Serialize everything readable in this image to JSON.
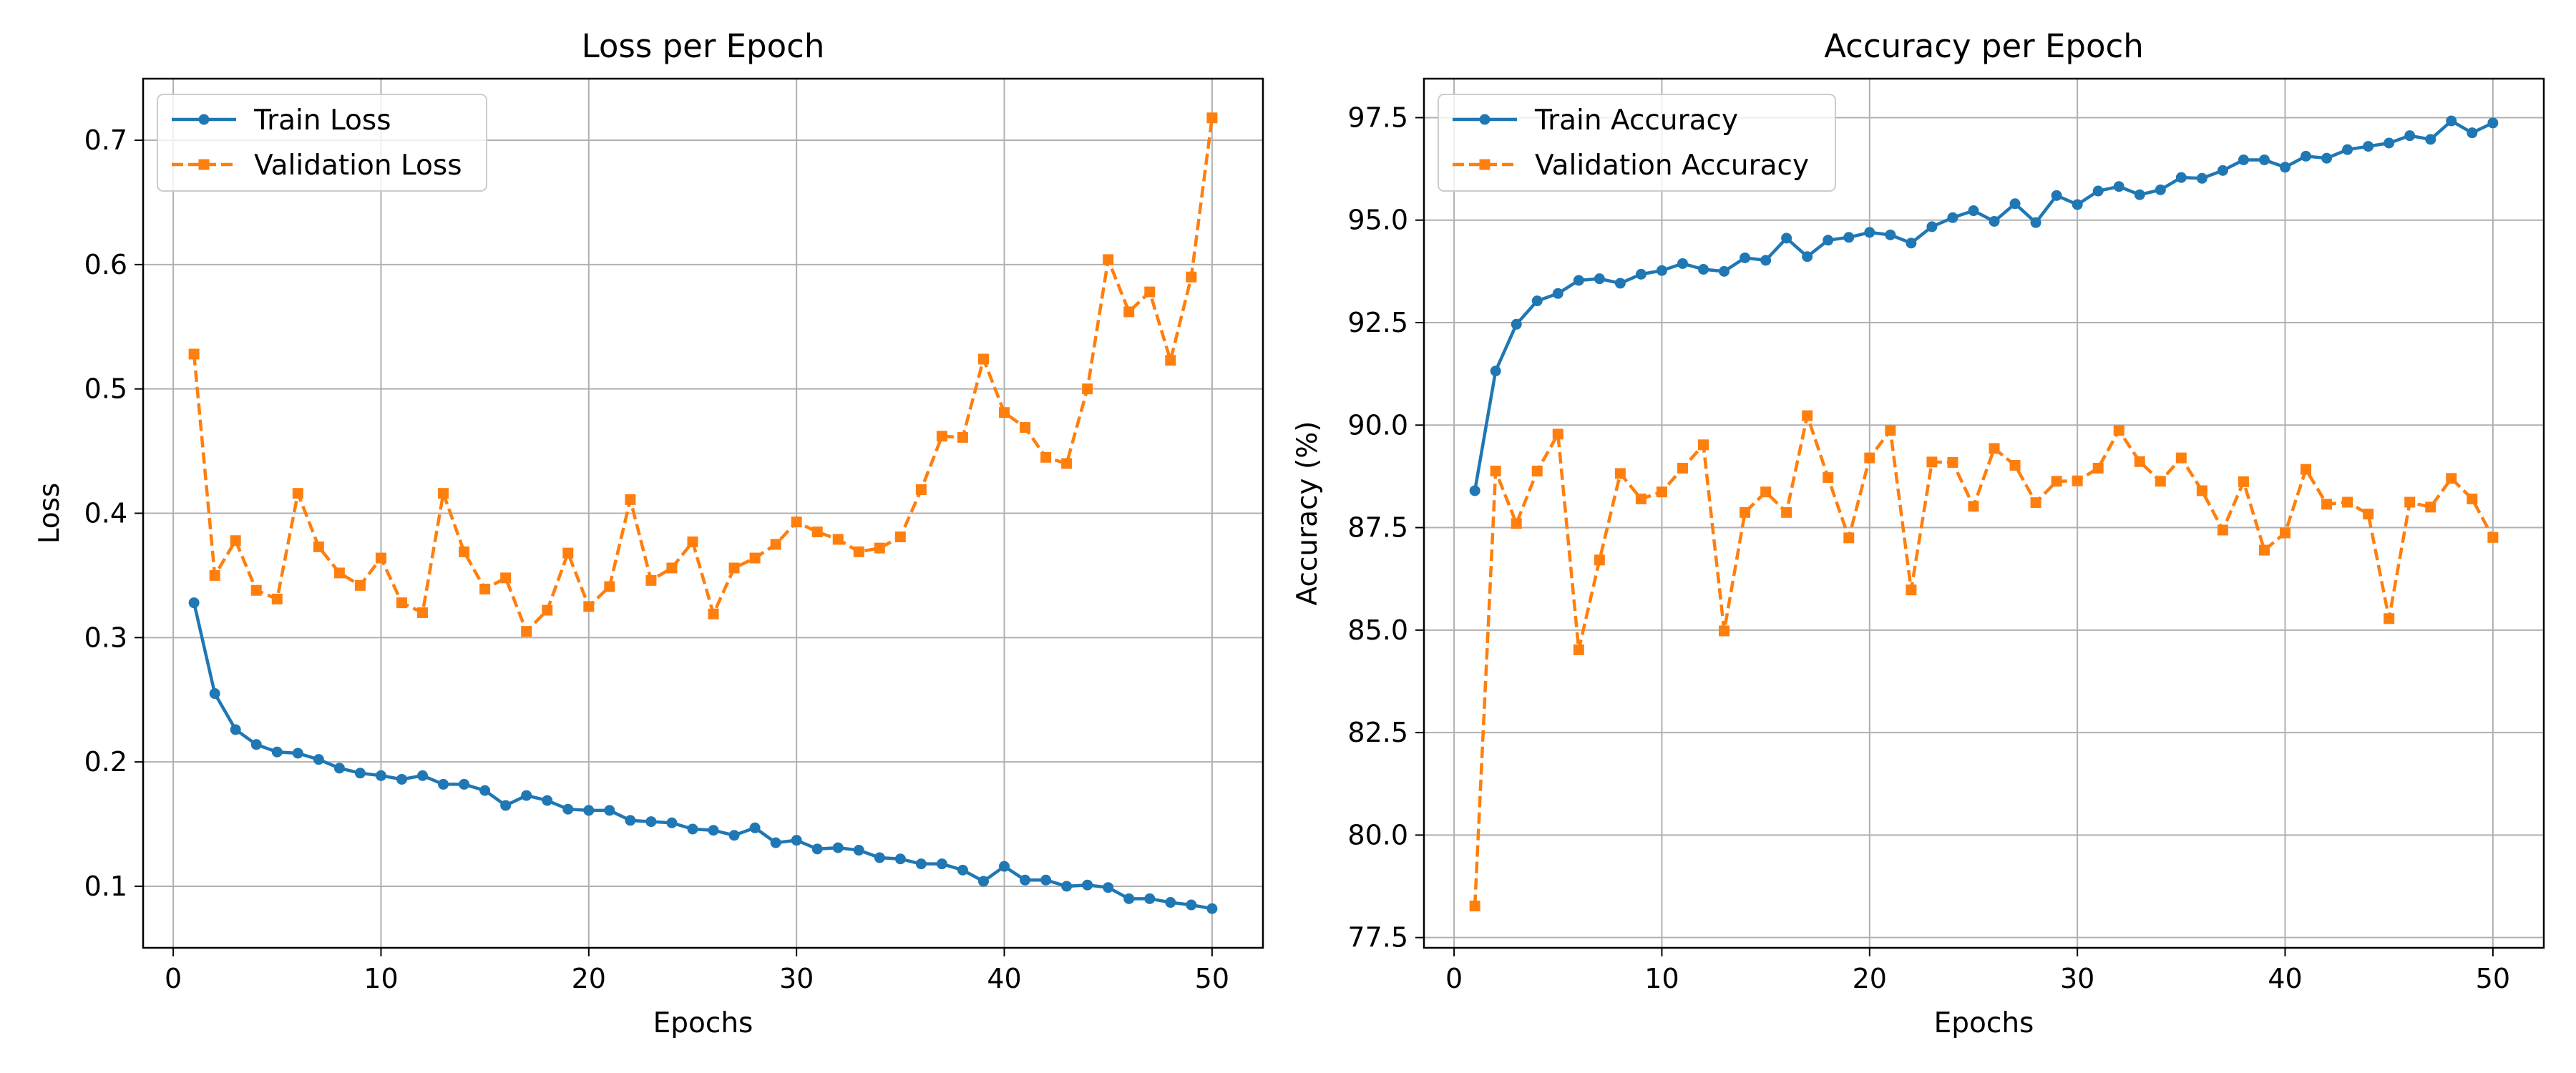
{
  "chart_data": [
    {
      "type": "line",
      "title": "Loss per Epoch",
      "xlabel": "Epochs",
      "ylabel": "Loss",
      "xlim": [
        -1.45,
        52.45
      ],
      "ylim": [
        0.0505,
        0.7495
      ],
      "xticks": [
        0,
        10,
        20,
        30,
        40,
        50
      ],
      "yticks": [
        0.1,
        0.2,
        0.3,
        0.4,
        0.5,
        0.6,
        0.7
      ],
      "ytick_labels": [
        "0.1",
        "0.2",
        "0.3",
        "0.4",
        "0.5",
        "0.6",
        "0.7"
      ],
      "grid": true,
      "legend_position": "top-left",
      "x": [
        1,
        2,
        3,
        4,
        5,
        6,
        7,
        8,
        9,
        10,
        11,
        12,
        13,
        14,
        15,
        16,
        17,
        18,
        19,
        20,
        21,
        22,
        23,
        24,
        25,
        26,
        27,
        28,
        29,
        30,
        31,
        32,
        33,
        34,
        35,
        36,
        37,
        38,
        39,
        40,
        41,
        42,
        43,
        44,
        45,
        46,
        47,
        48,
        49,
        50
      ],
      "series": [
        {
          "name": "Train Loss",
          "color": "#1f77b4",
          "style": "solid",
          "marker": "circle",
          "values": [
            0.328,
            0.255,
            0.226,
            0.214,
            0.208,
            0.207,
            0.202,
            0.195,
            0.191,
            0.189,
            0.186,
            0.189,
            0.182,
            0.182,
            0.177,
            0.165,
            0.173,
            0.169,
            0.162,
            0.161,
            0.161,
            0.153,
            0.152,
            0.151,
            0.146,
            0.145,
            0.141,
            0.147,
            0.135,
            0.137,
            0.13,
            0.131,
            0.129,
            0.123,
            0.122,
            0.118,
            0.118,
            0.113,
            0.104,
            0.116,
            0.105,
            0.105,
            0.1,
            0.101,
            0.099,
            0.09,
            0.09,
            0.087,
            0.085,
            0.082
          ]
        },
        {
          "name": "Validation Loss",
          "color": "#ff7f0e",
          "style": "dashed",
          "marker": "square",
          "values": [
            0.528,
            0.35,
            0.378,
            0.338,
            0.331,
            0.416,
            0.373,
            0.352,
            0.342,
            0.364,
            0.328,
            0.32,
            0.416,
            0.369,
            0.339,
            0.348,
            0.305,
            0.322,
            0.368,
            0.325,
            0.341,
            0.411,
            0.346,
            0.356,
            0.377,
            0.319,
            0.356,
            0.364,
            0.375,
            0.393,
            0.385,
            0.379,
            0.369,
            0.372,
            0.381,
            0.419,
            0.462,
            0.461,
            0.524,
            0.481,
            0.469,
            0.445,
            0.44,
            0.5,
            0.604,
            0.562,
            0.578,
            0.523,
            0.59,
            0.718
          ]
        }
      ]
    },
    {
      "type": "line",
      "title": "Accuracy per Epoch",
      "xlabel": "Epochs",
      "ylabel": "Accuracy (%)",
      "xlim": [
        -1.45,
        52.45
      ],
      "ylim": [
        77.25,
        98.45
      ],
      "xticks": [
        0,
        10,
        20,
        30,
        40,
        50
      ],
      "yticks": [
        77.5,
        80.0,
        82.5,
        85.0,
        87.5,
        90.0,
        92.5,
        95.0,
        97.5
      ],
      "ytick_labels": [
        "77.5",
        "80.0",
        "82.5",
        "85.0",
        "87.5",
        "90.0",
        "92.5",
        "95.0",
        "97.5"
      ],
      "grid": true,
      "legend_position": "top-left",
      "x": [
        1,
        2,
        3,
        4,
        5,
        6,
        7,
        8,
        9,
        10,
        11,
        12,
        13,
        14,
        15,
        16,
        17,
        18,
        19,
        20,
        21,
        22,
        23,
        24,
        25,
        26,
        27,
        28,
        29,
        30,
        31,
        32,
        33,
        34,
        35,
        36,
        37,
        38,
        39,
        40,
        41,
        42,
        43,
        44,
        45,
        46,
        47,
        48,
        49,
        50
      ],
      "series": [
        {
          "name": "Train Accuracy",
          "color": "#1f77b4",
          "style": "solid",
          "marker": "circle",
          "values": [
            88.4,
            91.32,
            92.46,
            93.03,
            93.21,
            93.53,
            93.57,
            93.46,
            93.68,
            93.77,
            93.94,
            93.8,
            93.75,
            94.08,
            94.02,
            94.56,
            94.11,
            94.51,
            94.58,
            94.7,
            94.64,
            94.44,
            94.84,
            95.06,
            95.23,
            94.97,
            95.4,
            94.94,
            95.6,
            95.38,
            95.71,
            95.82,
            95.62,
            95.74,
            96.04,
            96.02,
            96.21,
            96.47,
            96.47,
            96.29,
            96.56,
            96.51,
            96.72,
            96.8,
            96.88,
            97.06,
            96.97,
            97.42,
            97.13,
            97.37
          ]
        },
        {
          "name": "Validation Accuracy",
          "color": "#ff7f0e",
          "style": "dashed",
          "marker": "square",
          "values": [
            78.27,
            88.88,
            87.6,
            88.88,
            89.78,
            84.52,
            86.71,
            88.82,
            88.2,
            88.37,
            88.95,
            89.52,
            84.98,
            87.87,
            88.37,
            87.87,
            90.23,
            88.72,
            87.25,
            89.2,
            89.87,
            85.98,
            89.1,
            89.09,
            88.02,
            89.43,
            89.02,
            88.11,
            88.63,
            88.64,
            88.95,
            89.87,
            89.11,
            88.63,
            89.2,
            88.4,
            87.44,
            88.62,
            86.95,
            87.37,
            88.92,
            88.07,
            88.12,
            87.83,
            85.28,
            88.12,
            88.0,
            88.7,
            88.2,
            87.26
          ]
        }
      ]
    }
  ]
}
